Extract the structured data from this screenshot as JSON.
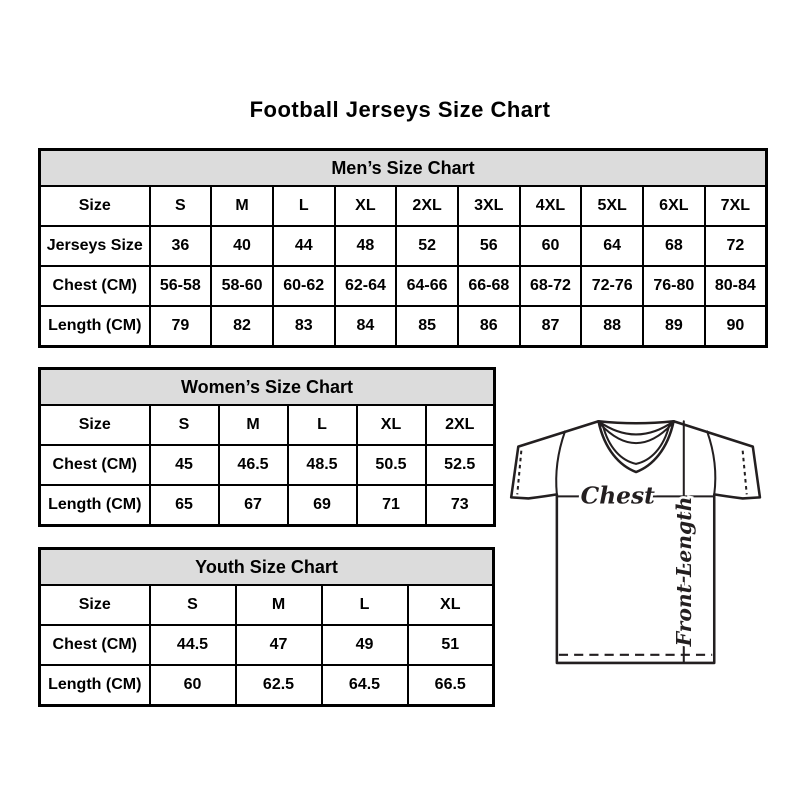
{
  "page": {
    "title": "Football Jerseys Size Chart"
  },
  "tables": {
    "men": {
      "title": "Men’s Size Chart",
      "rows": [
        {
          "label": "Size",
          "values": [
            "S",
            "M",
            "L",
            "XL",
            "2XL",
            "3XL",
            "4XL",
            "5XL",
            "6XL",
            "7XL"
          ]
        },
        {
          "label": "Jerseys Size",
          "values": [
            "36",
            "40",
            "44",
            "48",
            "52",
            "56",
            "60",
            "64",
            "68",
            "72"
          ]
        },
        {
          "label": "Chest (CM)",
          "values": [
            "56-58",
            "58-60",
            "60-62",
            "62-64",
            "64-66",
            "66-68",
            "68-72",
            "72-76",
            "76-80",
            "80-84"
          ]
        },
        {
          "label": "Length (CM)",
          "values": [
            "79",
            "82",
            "83",
            "84",
            "85",
            "86",
            "87",
            "88",
            "89",
            "90"
          ]
        }
      ]
    },
    "women": {
      "title": "Women’s Size Chart",
      "rows": [
        {
          "label": "Size",
          "values": [
            "S",
            "M",
            "L",
            "XL",
            "2XL"
          ]
        },
        {
          "label": "Chest (CM)",
          "values": [
            "45",
            "46.5",
            "48.5",
            "50.5",
            "52.5"
          ]
        },
        {
          "label": "Length (CM)",
          "values": [
            "65",
            "67",
            "69",
            "71",
            "73"
          ]
        }
      ]
    },
    "youth": {
      "title": "Youth Size Chart",
      "rows": [
        {
          "label": "Size",
          "values": [
            "S",
            "M",
            "L",
            "XL"
          ]
        },
        {
          "label": "Chest (CM)",
          "values": [
            "44.5",
            "47",
            "49",
            "51"
          ]
        },
        {
          "label": "Length (CM)",
          "values": [
            "60",
            "62.5",
            "64.5",
            "66.5"
          ]
        }
      ]
    }
  },
  "diagram": {
    "chest_label": "Chest",
    "front_length_label": "Front Length"
  },
  "colors": {
    "header_bg": "#dcdcdc",
    "border": "#000000",
    "text": "#000000",
    "background": "#ffffff"
  }
}
